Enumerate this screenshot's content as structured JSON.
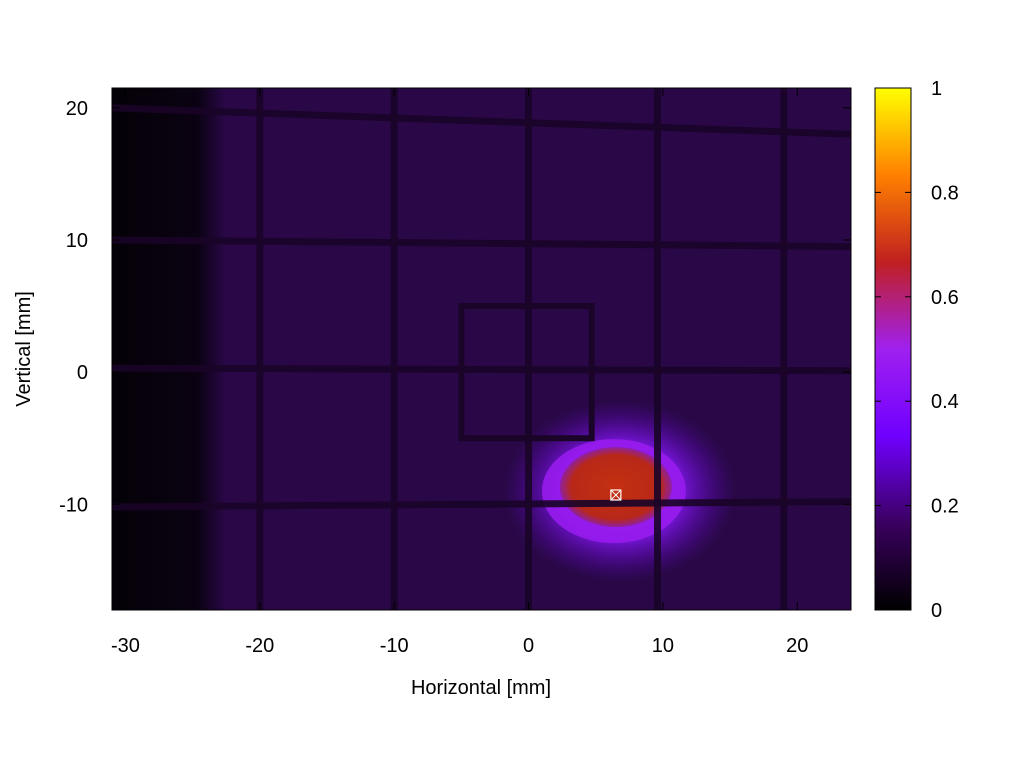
{
  "chart_data": {
    "type": "heatmap",
    "title": "",
    "xlabel": "Horizontal [mm]",
    "ylabel": "Vertical [mm]",
    "xlim": [
      -31,
      24
    ],
    "ylim": [
      -18,
      21.5
    ],
    "xticks": [
      -30,
      -20,
      -10,
      0,
      10,
      20
    ],
    "yticks": [
      -10,
      0,
      10,
      20
    ],
    "colorbar": {
      "range": [
        0,
        1
      ],
      "ticks": [
        0,
        0.2,
        0.4,
        0.6,
        0.8,
        1
      ],
      "palette": [
        "#000000",
        "#3a0060",
        "#7000ff",
        "#a020f0",
        "#c02020",
        "#ff8000",
        "#ffff00"
      ]
    },
    "background_intensity": 0.12,
    "grid_lines": {
      "vertical_x": [
        -20,
        -10,
        0,
        9.6,
        19
      ],
      "horizontal": [
        {
          "y_left": 20,
          "y_right": 18
        },
        {
          "y_left": 10,
          "y_right": 9.5
        },
        {
          "y_left": 0.3,
          "y_right": 0.1
        },
        {
          "y_left": -10.2,
          "y_right": -9.8
        }
      ]
    },
    "dark_band_x": [
      -31,
      -24
    ],
    "target_square": {
      "x": [
        -5,
        4.7
      ],
      "y": [
        -5,
        5
      ]
    },
    "beam_spot": {
      "center_x": 6.8,
      "center_y": -9,
      "peak_intensity": 0.55
    },
    "marker": {
      "x": 6.5,
      "y": -9.3
    }
  }
}
